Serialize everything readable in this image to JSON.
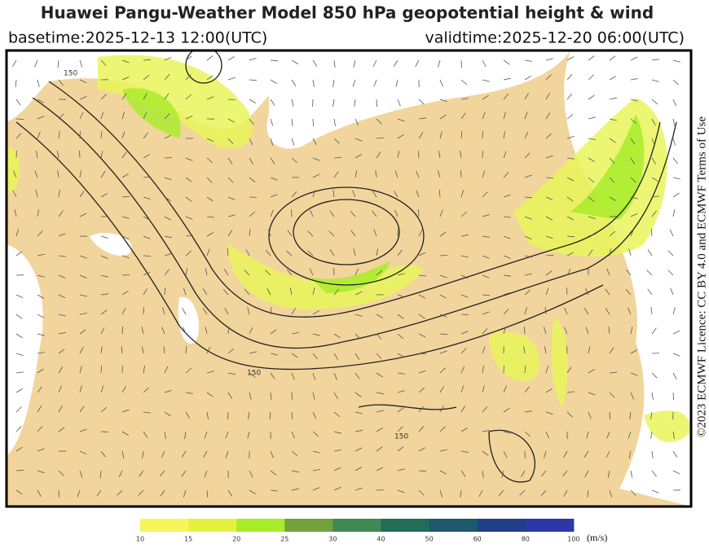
{
  "header": {
    "title": "Huawei Pangu-Weather Model 850 hPa geopotential height & wind",
    "basetime": "basetime:2025-12-13 12:00(UTC)",
    "validtime": "validtime:2025-12-20 06:00(UTC)"
  },
  "licence": "©2023 ECMWF Licence: CC BY 4.0 and ECMWF Terms of Use",
  "map": {
    "contour_labels": [
      "150",
      "150",
      "150"
    ]
  },
  "colorbar": {
    "bounds": [
      10,
      15,
      20,
      25,
      30,
      40,
      50,
      60,
      80,
      100
    ],
    "colors": [
      "#f6f65c",
      "#e4f23e",
      "#a8ec2a",
      "#72a23c",
      "#3f8a52",
      "#226c58",
      "#1c5a6c",
      "#203f88",
      "#2c38aa"
    ],
    "unit": "(m/s)"
  }
}
